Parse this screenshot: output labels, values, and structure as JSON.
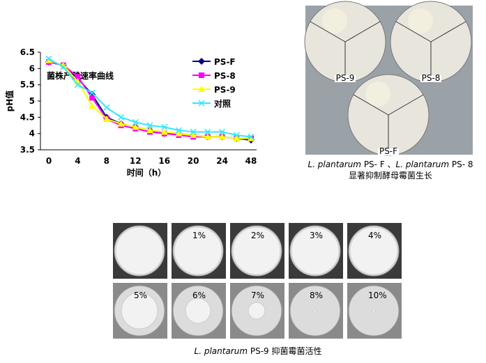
{
  "chart_data": {
    "type": "line",
    "annotation": "菌株产酸速率曲线",
    "x_label": "时间（h）",
    "y_label": "pH值",
    "categories": [
      "0",
      null,
      "4",
      null,
      "8",
      null,
      "12",
      null,
      "16",
      null,
      "20",
      null,
      "24",
      null,
      "48"
    ],
    "series": [
      {
        "name": "PS-F",
        "color": "#000080",
        "marker": "diamond",
        "values": [
          6.2,
          6.1,
          5.7,
          5.2,
          4.5,
          4.3,
          4.2,
          4.1,
          4.0,
          4.0,
          3.95,
          3.9,
          3.9,
          3.85,
          3.8
        ]
      },
      {
        "name": "PS-8",
        "color": "#ff00ff",
        "marker": "square",
        "values": [
          6.2,
          6.1,
          5.75,
          5.1,
          4.45,
          4.25,
          4.15,
          4.05,
          4.0,
          3.95,
          3.9,
          3.9,
          3.9,
          3.85,
          3.85
        ]
      },
      {
        "name": "PS-9",
        "color": "#ffff00",
        "marker": "triangle",
        "values": [
          6.25,
          6.1,
          5.6,
          4.85,
          4.45,
          4.3,
          4.2,
          4.1,
          4.05,
          4.0,
          3.95,
          3.9,
          3.9,
          3.85,
          3.85
        ]
      },
      {
        "name": "对照",
        "color": "#33e6ff",
        "marker": "x",
        "values": [
          6.3,
          6.05,
          5.5,
          5.25,
          4.8,
          4.5,
          4.35,
          4.25,
          4.2,
          4.1,
          4.05,
          4.05,
          4.05,
          3.95,
          3.9
        ]
      }
    ],
    "ylim": [
      3.5,
      6.5
    ],
    "yticks": [
      3.5,
      4,
      4.5,
      5,
      5.5,
      6,
      6.5
    ],
    "grid": false
  },
  "figure_top": {
    "plate_tags": [
      "PS-9",
      "PS-8",
      "PS-F"
    ],
    "caption_line1": [
      "L. plantarum",
      " PS- F 、",
      "L. plantarum",
      " PS- 8"
    ],
    "caption_line2": "显著抑制酵母霉菌生长"
  },
  "figure_bottom": {
    "plate_labels": [
      "1%",
      "2%",
      "3%",
      "4%",
      "5%",
      "6%",
      "7%",
      "8%",
      "10%"
    ],
    "caption": [
      "L. plantarum",
      " PS-9 抑菌霉菌活性"
    ]
  }
}
